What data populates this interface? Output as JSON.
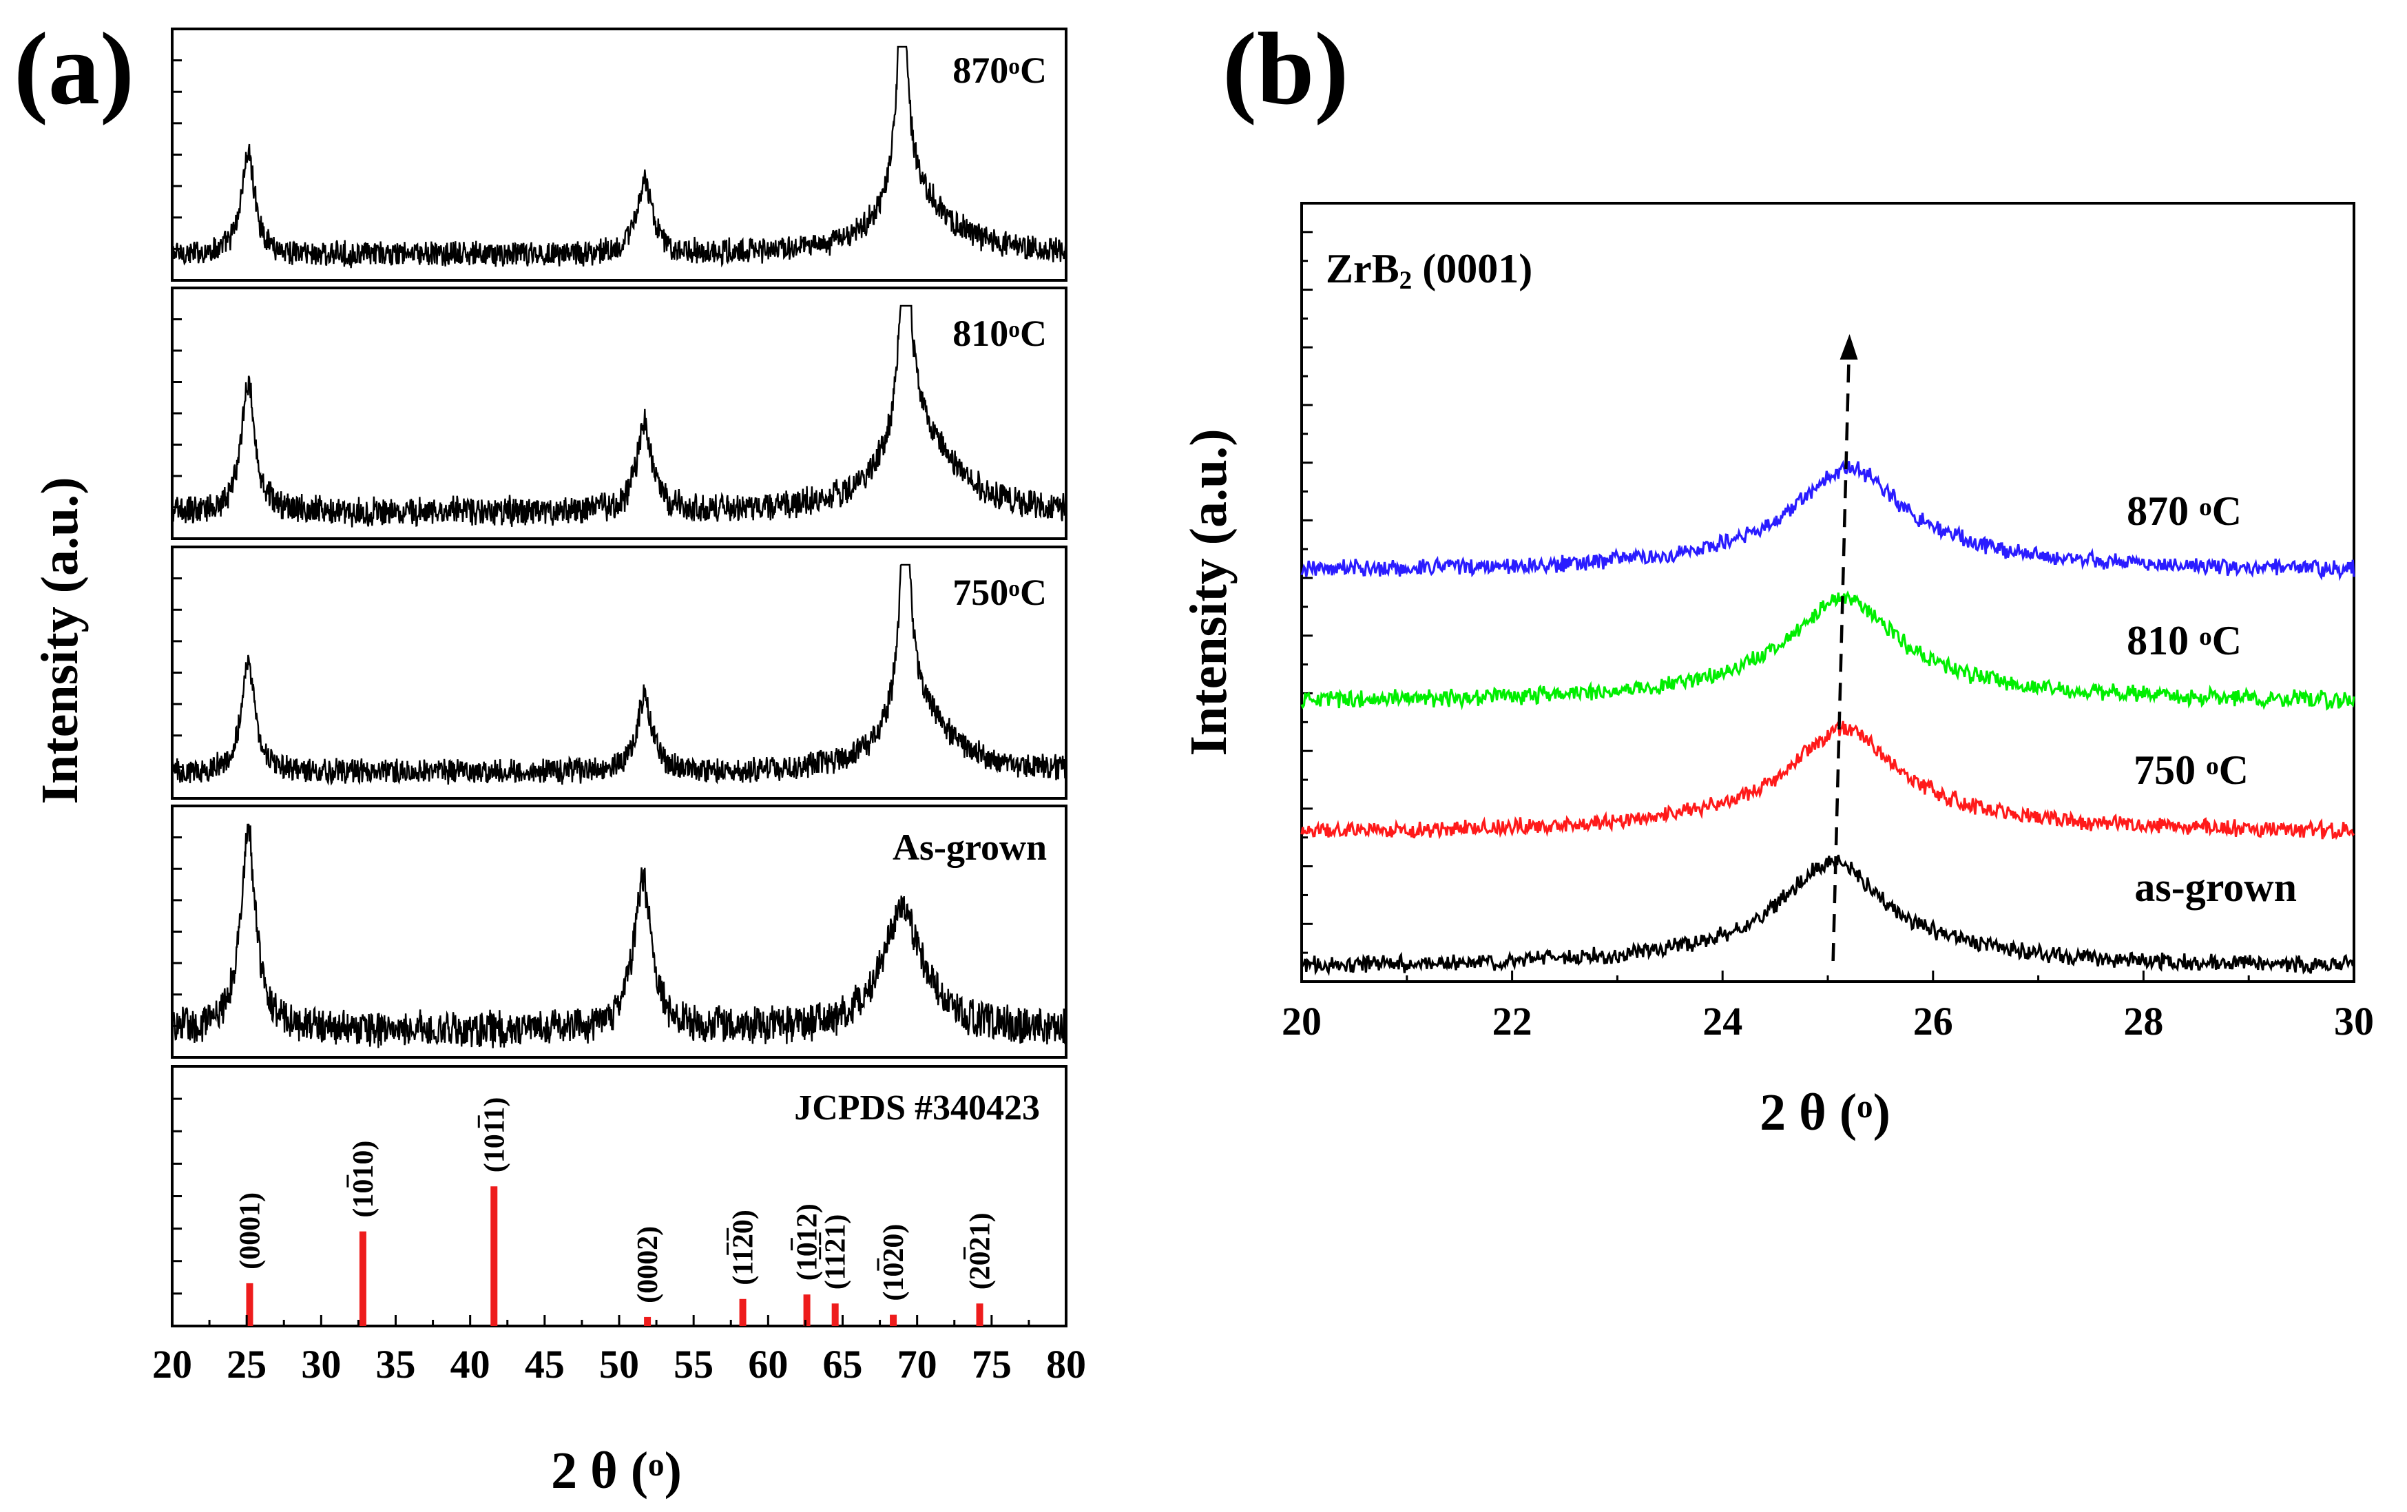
{
  "panel_a": {
    "label": "(a)",
    "ylabel": "Intensity (a.u.)",
    "xlabel": "2 θ (°)",
    "xlabel_parts": {
      "pre": "2 θ (",
      "sup": "o",
      "post": ")"
    }
  },
  "panel_b": {
    "label": "(b)",
    "ylabel": "Intensity (a.u.)",
    "xlabel": "2 θ (°)",
    "xlabel_parts": {
      "pre": "2 θ (",
      "sup": "o",
      "post": ")"
    },
    "title_parts": {
      "pre": "ZrB",
      "sub": "2",
      "post": " (0001)"
    }
  },
  "chart_data": [
    {
      "type": "line",
      "title": "(a)",
      "xlabel": "2 θ (°)",
      "ylabel": "Intensity (a.u.)",
      "xlim": [
        20,
        80
      ],
      "xticks": [
        20,
        25,
        30,
        35,
        40,
        45,
        50,
        55,
        60,
        65,
        70,
        75,
        80
      ],
      "layout": "stacked panels",
      "series": [
        {
          "name": "870°C",
          "label_parts": {
            "pre": "870",
            "sup": "o",
            "post": "C"
          },
          "peaks": [
            {
              "x": 25.1,
              "height": 0.48,
              "width": 0.55
            },
            {
              "x": 51.7,
              "height": 0.35,
              "width": 0.6
            },
            {
              "x": 69.0,
              "height": 1.0,
              "width": 0.45
            },
            {
              "x": 69.8,
              "height": 0.28,
              "width": 2.8
            }
          ],
          "noise": 0.07
        },
        {
          "name": "810°C",
          "label_parts": {
            "pre": "810",
            "sup": "o",
            "post": "C"
          },
          "peaks": [
            {
              "x": 25.1,
              "height": 0.62,
              "width": 0.55
            },
            {
              "x": 51.7,
              "height": 0.42,
              "width": 0.6
            },
            {
              "x": 69.2,
              "height": 1.0,
              "width": 0.45
            },
            {
              "x": 70.0,
              "height": 0.42,
              "width": 2.6
            }
          ],
          "noise": 0.08
        },
        {
          "name": "750°C",
          "label_parts": {
            "pre": "750",
            "sup": "o",
            "post": "C"
          },
          "peaks": [
            {
              "x": 25.1,
              "height": 0.53,
              "width": 0.55
            },
            {
              "x": 51.7,
              "height": 0.36,
              "width": 0.6
            },
            {
              "x": 69.2,
              "height": 1.0,
              "width": 0.45
            },
            {
              "x": 70.0,
              "height": 0.3,
              "width": 2.6
            }
          ],
          "noise": 0.07
        },
        {
          "name": "As-grown",
          "label_parts": {
            "pre": "As-grown",
            "sup": "",
            "post": ""
          },
          "peaks": [
            {
              "x": 25.1,
              "height": 0.95,
              "width": 0.6
            },
            {
              "x": 51.6,
              "height": 0.72,
              "width": 0.7
            },
            {
              "x": 69.0,
              "height": 0.58,
              "width": 1.6
            }
          ],
          "noise": 0.1
        }
      ],
      "reference": {
        "name": "JCPDS #340423",
        "lines": [
          {
            "x": 25.2,
            "intensity": 0.19,
            "hkl": "(0001)",
            "bars": []
          },
          {
            "x": 32.8,
            "intensity": 0.42,
            "hkl": "(1010)",
            "bars": [
              2
            ]
          },
          {
            "x": 41.6,
            "intensity": 0.62,
            "hkl": "(1011)",
            "bars": [
              3
            ]
          },
          {
            "x": 51.9,
            "intensity": 0.04,
            "hkl": "(0002)",
            "bars": []
          },
          {
            "x": 58.3,
            "intensity": 0.12,
            "hkl": "(1120)",
            "bars": [
              2,
              3
            ]
          },
          {
            "x": 62.6,
            "intensity": 0.14,
            "hkl": "(1012)",
            "bars": [
              2
            ]
          },
          {
            "x": 64.5,
            "intensity": 0.1,
            "hkl": "(1121)",
            "bars": [
              2,
              3
            ]
          },
          {
            "x": 68.4,
            "intensity": 0.05,
            "hkl": "(1020)",
            "bars": [
              2
            ]
          },
          {
            "x": 74.2,
            "intensity": 0.1,
            "hkl": "(2021)",
            "bars": [
              2
            ]
          }
        ]
      }
    },
    {
      "type": "line",
      "title": "(b)",
      "annotation": "ZrB2 (0001)",
      "xlabel": "2 θ (°)",
      "ylabel": "Intensity (a.u.)",
      "xlim": [
        20,
        30
      ],
      "xticks": [
        20,
        22,
        24,
        26,
        28,
        30
      ],
      "peak_shift_arrow": {
        "x_start": 25.05,
        "x_end": 25.2
      },
      "series": [
        {
          "name": "870 °C",
          "label_parts": {
            "pre": "870 ",
            "sup": "o",
            "post": "C"
          },
          "color": "#2a1cff",
          "peak_x": 25.2,
          "peak_height": 0.95,
          "noise": 0.09,
          "offset": 3
        },
        {
          "name": "810 °C",
          "label_parts": {
            "pre": "810 ",
            "sup": "o",
            "post": "C"
          },
          "color": "#00ee00",
          "peak_x": 25.15,
          "peak_height": 0.95,
          "noise": 0.09,
          "offset": 2
        },
        {
          "name": "750 °C",
          "label_parts": {
            "pre": "750 ",
            "sup": "o",
            "post": "C"
          },
          "color": "#ff1a1a",
          "peak_x": 25.15,
          "peak_height": 0.95,
          "noise": 0.09,
          "offset": 1
        },
        {
          "name": "as-grown",
          "label_parts": {
            "pre": "as-grown",
            "sup": "",
            "post": ""
          },
          "color": "#000000",
          "peak_x": 25.05,
          "peak_height": 0.95,
          "noise": 0.09,
          "offset": 0
        }
      ]
    }
  ]
}
